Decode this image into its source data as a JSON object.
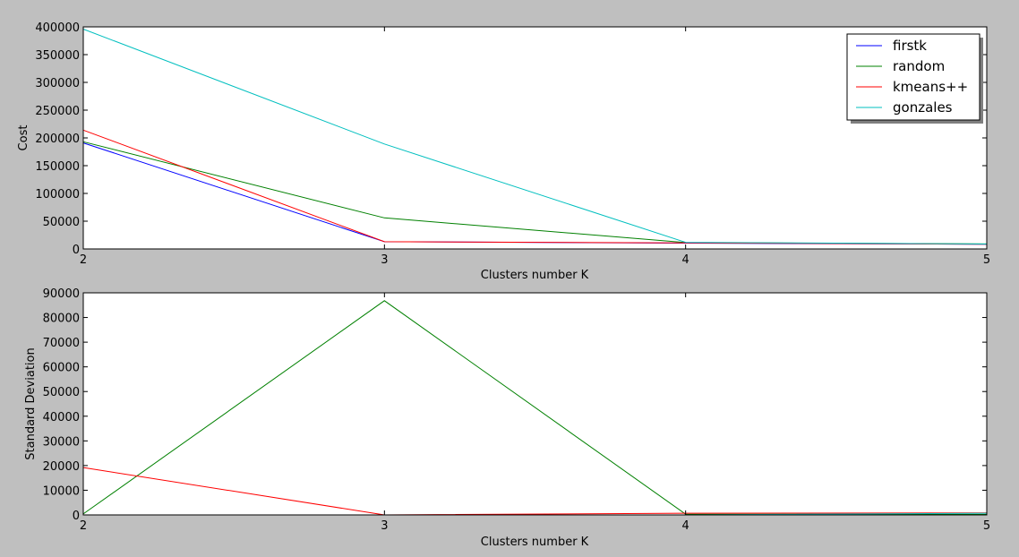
{
  "figure": {
    "background": "#bfbfbf"
  },
  "chart_data": [
    {
      "type": "line",
      "title": "",
      "xlabel": "Clusters number K",
      "ylabel": "Cost",
      "x": [
        2,
        3,
        4,
        5
      ],
      "xlim": [
        2,
        5
      ],
      "ylim": [
        0,
        400000
      ],
      "xticks": [
        "2",
        "3",
        "4",
        "5"
      ],
      "yticks": [
        0,
        50000,
        100000,
        150000,
        200000,
        250000,
        300000,
        350000,
        400000
      ],
      "ytick_labels": [
        "0",
        "50000",
        "100000",
        "150000",
        "200000",
        "250000",
        "300000",
        "350000",
        "400000"
      ],
      "grid": false,
      "legend": "top-right",
      "series": [
        {
          "name": "firstk",
          "color": "#0000ff",
          "values": [
            191000,
            13000,
            10500,
            8500
          ]
        },
        {
          "name": "random",
          "color": "#008000",
          "values": [
            193000,
            56000,
            11500,
            9000
          ]
        },
        {
          "name": "kmeans++",
          "color": "#ff0000",
          "values": [
            214000,
            13000,
            11000,
            8500
          ]
        },
        {
          "name": "gonzales",
          "color": "#00bfbf",
          "values": [
            396000,
            189000,
            12000,
            8800
          ]
        }
      ]
    },
    {
      "type": "line",
      "title": "",
      "xlabel": "Clusters number K",
      "ylabel": "Standard Deviation",
      "x": [
        2,
        3,
        4,
        5
      ],
      "xlim": [
        2,
        5
      ],
      "ylim": [
        0,
        90000
      ],
      "xticks": [
        "2",
        "3",
        "4",
        "5"
      ],
      "yticks": [
        0,
        10000,
        20000,
        30000,
        40000,
        50000,
        60000,
        70000,
        80000,
        90000
      ],
      "ytick_labels": [
        "0",
        "10000",
        "20000",
        "30000",
        "40000",
        "50000",
        "60000",
        "70000",
        "80000",
        "90000"
      ],
      "grid": false,
      "legend": "none",
      "series": [
        {
          "name": "firstk",
          "color": "#0000ff",
          "values": [
            0,
            0,
            0,
            0
          ]
        },
        {
          "name": "random",
          "color": "#008000",
          "values": [
            400,
            86800,
            300,
            200
          ]
        },
        {
          "name": "kmeans++",
          "color": "#ff0000",
          "values": [
            19200,
            0,
            700,
            800
          ]
        },
        {
          "name": "gonzales",
          "color": "#00bfbf",
          "values": [
            0,
            0,
            0,
            700
          ]
        }
      ]
    }
  ]
}
